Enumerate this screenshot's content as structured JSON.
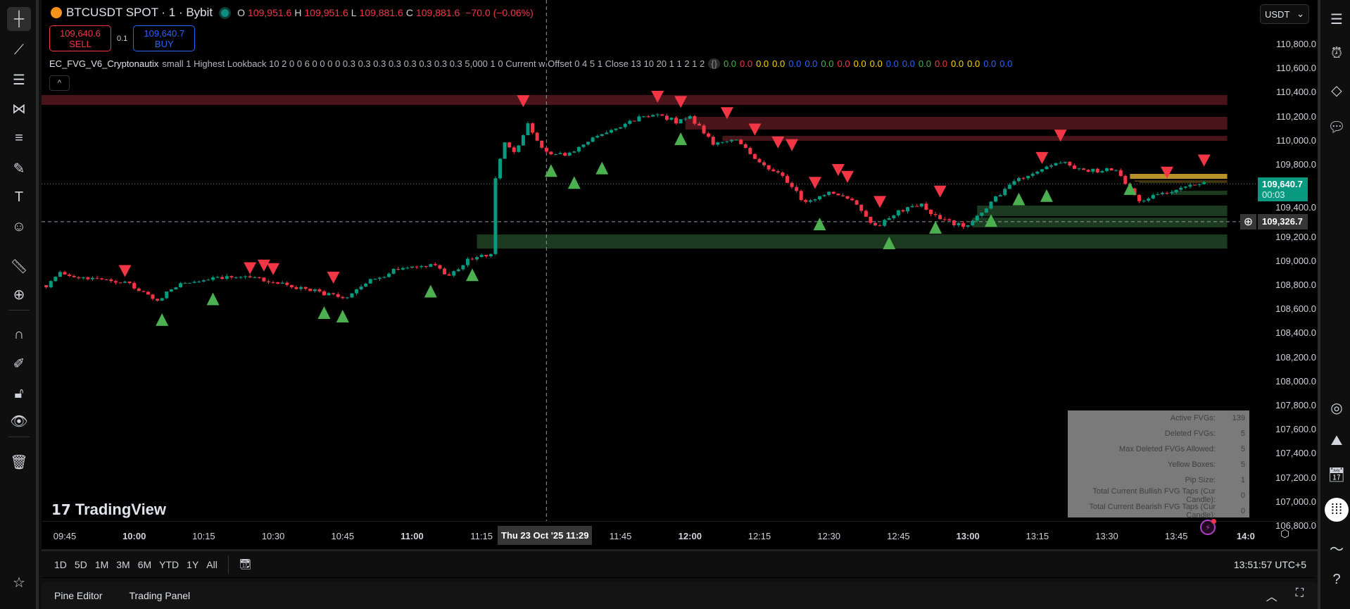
{
  "header": {
    "symbol": "BTCUSDT SPOT · 1 · Bybit",
    "ohlc": [
      {
        "k": "O",
        "v": "109,951.6"
      },
      {
        "k": "H",
        "v": "109,951.6"
      },
      {
        "k": "L",
        "v": "109,881.6"
      },
      {
        "k": "C",
        "v": "109,881.6"
      }
    ],
    "change": "−70.0 (−0.06%)"
  },
  "trade": {
    "sell_price": "109,640.6",
    "sell_label": "SELL",
    "spread": "0.1",
    "buy_price": "109,640.7",
    "buy_label": "BUY"
  },
  "indicator": {
    "name": "EC_FVG_V6_Cryptonautix",
    "params": "small 1 Highest Lookback 10 2 0 0 6 0 0 0 0 0.3 0.3 0.3 0.3 0.3 0.3 0.3 0.3 5,000 1 0 Current w Offset 0 4 5 1 Close 13 10 20 1 1 2 1 2",
    "braces": "{}",
    "values": [
      {
        "v": "0.0",
        "c": "#4caf50"
      },
      {
        "v": "0.0",
        "c": "#f23645"
      },
      {
        "v": "0.0",
        "c": "#ffd600"
      },
      {
        "v": "0.0",
        "c": "#ffd600"
      },
      {
        "v": "0.0",
        "c": "#2962ff"
      },
      {
        "v": "0.0",
        "c": "#2962ff"
      },
      {
        "v": "0.0",
        "c": "#4caf50"
      },
      {
        "v": "0.0",
        "c": "#f23645"
      },
      {
        "v": "0.0",
        "c": "#ffd600"
      },
      {
        "v": "0.0",
        "c": "#ffd600"
      },
      {
        "v": "0.0",
        "c": "#2962ff"
      },
      {
        "v": "0.0",
        "c": "#2962ff"
      },
      {
        "v": "0.0",
        "c": "#4caf50"
      },
      {
        "v": "0.0",
        "c": "#f23645"
      },
      {
        "v": "0.0",
        "c": "#ffd600"
      },
      {
        "v": "0.0",
        "c": "#ffd600"
      },
      {
        "v": "0.0",
        "c": "#2962ff"
      },
      {
        "v": "0.0",
        "c": "#2962ff"
      }
    ],
    "collapse": "^"
  },
  "price_scale": {
    "currency": "USDT",
    "labels": [
      "110,800.0",
      "110,600.0",
      "110,400.0",
      "110,200.0",
      "110,000.0",
      "109,800.0",
      "109,400.0",
      "109,200.0",
      "109,000.0",
      "108,800.0",
      "108,600.0",
      "108,400.0",
      "108,200.0",
      "108,000.0",
      "107,800.0",
      "107,600.0",
      "107,400.0",
      "107,200.0",
      "107,000.0",
      "106,800.0"
    ],
    "current_price": "109,640.7",
    "countdown": "00:03",
    "crosshair_price": "109,326.7"
  },
  "time_axis": {
    "labels": [
      {
        "t": "09:45",
        "b": false
      },
      {
        "t": "10:00",
        "b": true
      },
      {
        "t": "10:15",
        "b": false
      },
      {
        "t": "10:30",
        "b": false
      },
      {
        "t": "10:45",
        "b": false
      },
      {
        "t": "11:00",
        "b": true
      },
      {
        "t": "11:15",
        "b": false
      },
      {
        "t": "11:45",
        "b": false
      },
      {
        "t": "12:00",
        "b": true
      },
      {
        "t": "12:15",
        "b": false
      },
      {
        "t": "12:30",
        "b": false
      },
      {
        "t": "12:45",
        "b": false
      },
      {
        "t": "13:00",
        "b": true
      },
      {
        "t": "13:15",
        "b": false
      },
      {
        "t": "13:30",
        "b": false
      },
      {
        "t": "13:45",
        "b": false
      },
      {
        "t": "14:0",
        "b": true
      }
    ],
    "crosshair_time": "Thu 23 Oct '25   11:29"
  },
  "chart": {
    "up_color": "#089981",
    "down_color": "#f23645",
    "price_path": [
      [
        "09:41",
        108800
      ],
      [
        "09:44",
        108900
      ],
      [
        "09:50",
        108860
      ],
      [
        "09:58",
        108820
      ],
      [
        "10:05",
        108680
      ],
      [
        "10:10",
        108820
      ],
      [
        "10:18",
        108870
      ],
      [
        "10:25",
        108860
      ],
      [
        "10:33",
        108800
      ],
      [
        "10:40",
        108740
      ],
      [
        "10:46",
        108700
      ],
      [
        "10:50",
        108820
      ],
      [
        "10:58",
        108950
      ],
      [
        "11:05",
        108960
      ],
      [
        "11:08",
        108880
      ],
      [
        "11:12",
        109010
      ],
      [
        "11:17",
        109050
      ],
      [
        "11:18",
        109700
      ],
      [
        "11:20",
        109980
      ],
      [
        "11:22",
        109900
      ],
      [
        "11:25",
        110130
      ],
      [
        "11:29",
        109900
      ],
      [
        "11:33",
        109880
      ],
      [
        "11:38",
        110000
      ],
      [
        "11:45",
        110130
      ],
      [
        "11:52",
        110230
      ],
      [
        "11:57",
        110160
      ],
      [
        "12:00",
        110200
      ],
      [
        "12:05",
        109980
      ],
      [
        "12:10",
        110000
      ],
      [
        "12:15",
        109830
      ],
      [
        "12:20",
        109700
      ],
      [
        "12:25",
        109480
      ],
      [
        "12:30",
        109560
      ],
      [
        "12:35",
        109520
      ],
      [
        "12:40",
        109280
      ],
      [
        "12:45",
        109420
      ],
      [
        "12:50",
        109460
      ],
      [
        "12:55",
        109330
      ],
      [
        "13:00",
        109280
      ],
      [
        "13:05",
        109480
      ],
      [
        "13:10",
        109680
      ],
      [
        "13:15",
        109730
      ],
      [
        "13:20",
        109830
      ],
      [
        "13:25",
        109750
      ],
      [
        "13:32",
        109760
      ],
      [
        "13:37",
        109500
      ],
      [
        "13:42",
        109560
      ],
      [
        "13:48",
        109620
      ],
      [
        "13:51",
        109640
      ]
    ],
    "zones": [
      {
        "type": "bearish",
        "start": "09:41",
        "end": "13:56",
        "top": 110379,
        "bottom": 110297,
        "color": "#4a141b"
      },
      {
        "type": "bearish",
        "start": "11:59",
        "end": "13:56",
        "top": 110198,
        "bottom": 110093,
        "color": "#4a141b"
      },
      {
        "type": "bearish",
        "start": "12:07",
        "end": "13:56",
        "top": 110040,
        "bottom": 109999,
        "color": "#4a141b"
      },
      {
        "type": "yellow",
        "start": "13:35",
        "end": "13:56",
        "top": 109724,
        "bottom": 109683,
        "color": "#b8912a"
      },
      {
        "type": "yellow",
        "start": "13:36",
        "end": "13:56",
        "top": 109668,
        "bottom": 109662,
        "color": "#8a6e22"
      },
      {
        "type": "yellow",
        "start": "13:37",
        "end": "13:56",
        "top": 109656,
        "bottom": 109651,
        "color": "#8a6e22"
      },
      {
        "type": "bullish",
        "start": "13:44",
        "end": "13:56",
        "top": 109584,
        "bottom": 109549,
        "color": "#1b3a1f"
      },
      {
        "type": "bullish",
        "start": "13:02",
        "end": "13:56",
        "top": 109461,
        "bottom": 109373,
        "color": "#1b3a1f"
      },
      {
        "type": "bullish",
        "start": "13:01",
        "end": "13:56",
        "top": 109361,
        "bottom": 109280,
        "color": "#1b3a1f"
      },
      {
        "type": "bullish",
        "start": "11:14",
        "end": "13:56",
        "top": 109221,
        "bottom": 109104,
        "color": "#1b3a1f"
      }
    ],
    "bear_markers": [
      [
        "09:58",
        108920
      ],
      [
        "10:25",
        108943
      ],
      [
        "10:28",
        108965
      ],
      [
        "10:30",
        108936
      ],
      [
        "10:43",
        108865
      ],
      [
        "11:24",
        110331
      ],
      [
        "11:53",
        110367
      ],
      [
        "11:58",
        110324
      ],
      [
        "12:08",
        110231
      ],
      [
        "12:14",
        110095
      ],
      [
        "12:19",
        109988
      ],
      [
        "12:22",
        109966
      ],
      [
        "12:27",
        109652
      ],
      [
        "12:32",
        109759
      ],
      [
        "12:34",
        109702
      ],
      [
        "12:41",
        109494
      ],
      [
        "12:54",
        109580
      ],
      [
        "13:16",
        109859
      ],
      [
        "13:20",
        110045
      ],
      [
        "13:43",
        109737
      ],
      [
        "13:51",
        109838
      ]
    ],
    "bull_markers": [
      [
        "10:06",
        108514
      ],
      [
        "10:17",
        108686
      ],
      [
        "10:41",
        108572
      ],
      [
        "10:45",
        108543
      ],
      [
        "11:04",
        108750
      ],
      [
        "11:13",
        108886
      ],
      [
        "11:30",
        109752
      ],
      [
        "11:35",
        109652
      ],
      [
        "11:41",
        109773
      ],
      [
        "11:58",
        110016
      ],
      [
        "12:28",
        109308
      ],
      [
        "12:43",
        109151
      ],
      [
        "12:53",
        109280
      ],
      [
        "13:05",
        109337
      ],
      [
        "13:11",
        109516
      ],
      [
        "13:17",
        109544
      ],
      [
        "13:35",
        109602
      ]
    ],
    "bear_color": "#f23645",
    "bull_color": "#4caf50"
  },
  "stats_table": [
    {
      "k": "Active FVGs:",
      "v": "139"
    },
    {
      "k": "Deleted FVGs:",
      "v": "5"
    },
    {
      "k": "Max Deleted FVGs Allowed:",
      "v": "5"
    },
    {
      "k": "Yellow Boxes:",
      "v": "5"
    },
    {
      "k": "Pip Size:",
      "v": "1"
    },
    {
      "k": "Total Current Bullish FVG Taps (Cur Candle):",
      "v": "0"
    },
    {
      "k": "Total Current Bearish FVG Taps (Cur Candle):",
      "v": "0"
    }
  ],
  "watermark": "TradingView",
  "ranges": [
    "1D",
    "5D",
    "1M",
    "3M",
    "6M",
    "YTD",
    "1Y",
    "All"
  ],
  "clock": "13:51:57 UTC+5",
  "bottom_tabs": [
    "Pine Editor",
    "Trading Panel"
  ]
}
